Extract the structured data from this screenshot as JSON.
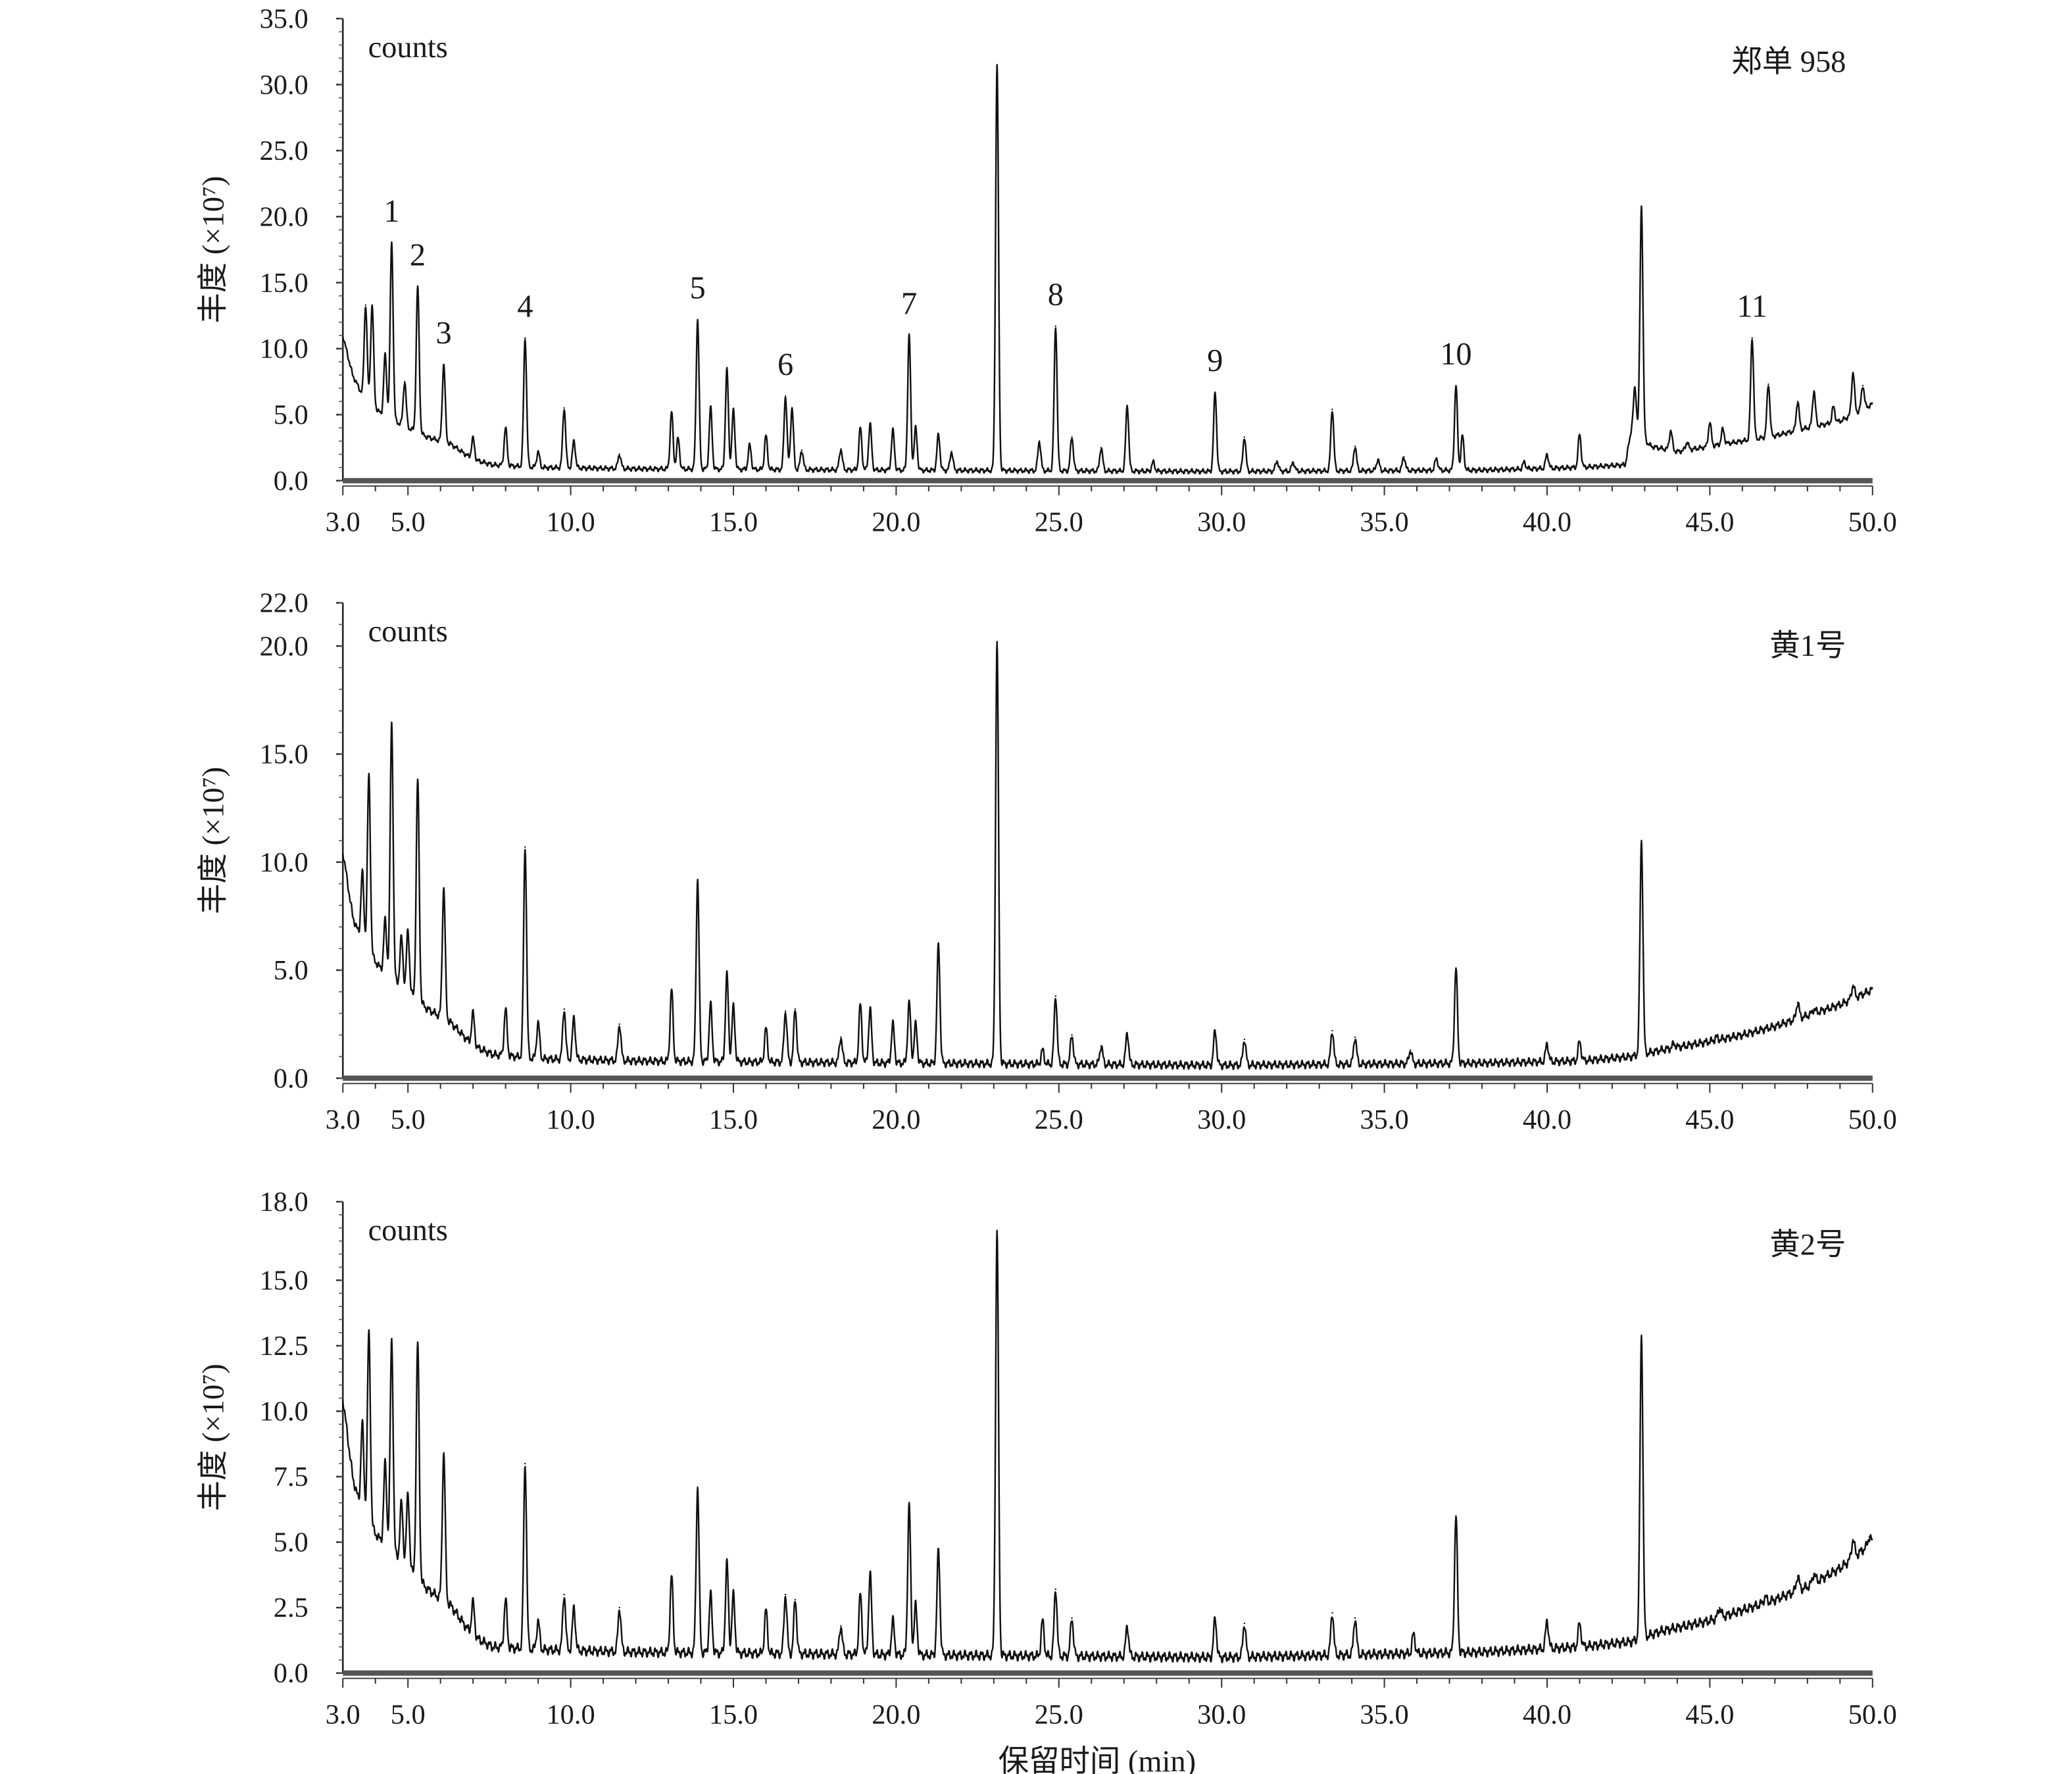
{
  "chart_data": {
    "type": "line",
    "xlabel": "保留时间 (min)",
    "xlim": [
      3.0,
      50.0
    ],
    "x_ticks": [
      "3.0",
      "5.0",
      "10.0",
      "15.0",
      "20.0",
      "25.0",
      "30.0",
      "35.0",
      "40.0",
      "45.0",
      "50.0"
    ],
    "x_tick_values": [
      3,
      5,
      10,
      15,
      20,
      25,
      30,
      35,
      40,
      45,
      50
    ],
    "panels": [
      {
        "name": "郑单 958",
        "unit_label": "counts",
        "ylabel": "丰度 (×10⁷)",
        "ylim": [
          0,
          35
        ],
        "y_ticks": [
          "0.0",
          "5.0",
          "10.0",
          "15.0",
          "20.0",
          "25.0",
          "30.0",
          "35.0"
        ],
        "y_tick_values": [
          0,
          5,
          10,
          15,
          20,
          25,
          30,
          35
        ],
        "baseline": [
          [
            3.0,
            11
          ],
          [
            3.3,
            8
          ],
          [
            3.6,
            6.5
          ],
          [
            4.2,
            5
          ],
          [
            5.0,
            4
          ],
          [
            5.6,
            3.3
          ],
          [
            6.3,
            2.8
          ],
          [
            7.0,
            1.6
          ],
          [
            7.6,
            1.2
          ],
          [
            9,
            1.0
          ],
          [
            12,
            0.9
          ],
          [
            20,
            0.8
          ],
          [
            30,
            0.7
          ],
          [
            38,
            0.8
          ],
          [
            41,
            1.0
          ],
          [
            42.4,
            1.2
          ],
          [
            42.6,
            4.0
          ],
          [
            43.2,
            2.6
          ],
          [
            44,
            2.2
          ],
          [
            45,
            2.6
          ],
          [
            46,
            3.0
          ],
          [
            47,
            3.4
          ],
          [
            48,
            4.0
          ],
          [
            49,
            4.5
          ],
          [
            50,
            5.8
          ]
        ],
        "peaks": [
          [
            3.7,
            13.3
          ],
          [
            3.9,
            13.3
          ],
          [
            4.3,
            9.5
          ],
          [
            4.5,
            18
          ],
          [
            4.9,
            7.5
          ],
          [
            5.3,
            14.7
          ],
          [
            6.1,
            8.8
          ],
          [
            7.0,
            3.2
          ],
          [
            8.0,
            4
          ],
          [
            8.6,
            10.8
          ],
          [
            9.0,
            2.2
          ],
          [
            9.8,
            5.5
          ],
          [
            10.1,
            3
          ],
          [
            11.5,
            2
          ],
          [
            13.1,
            5.2
          ],
          [
            13.3,
            3.2
          ],
          [
            13.9,
            12.2
          ],
          [
            14.3,
            5.5
          ],
          [
            14.8,
            8.4
          ],
          [
            15.0,
            5.3
          ],
          [
            15.5,
            2.7
          ],
          [
            16.0,
            3.4
          ],
          [
            16.6,
            6.4
          ],
          [
            16.8,
            5.5
          ],
          [
            17.1,
            2.3
          ],
          [
            18.3,
            2.4
          ],
          [
            18.9,
            4
          ],
          [
            19.2,
            4.3
          ],
          [
            19.9,
            3.8
          ],
          [
            20.4,
            11
          ],
          [
            20.6,
            4
          ],
          [
            21.3,
            3.5
          ],
          [
            21.7,
            2.2
          ],
          [
            23.1,
            31.5
          ],
          [
            24.4,
            3
          ],
          [
            24.9,
            11.7
          ],
          [
            25.4,
            3.3
          ],
          [
            26.3,
            2.5
          ],
          [
            27.1,
            5.7
          ],
          [
            27.9,
            1.4
          ],
          [
            29.8,
            6.7
          ],
          [
            30.7,
            3.3
          ],
          [
            31.7,
            1.5
          ],
          [
            32.2,
            1.4
          ],
          [
            33.4,
            5.4
          ],
          [
            34.1,
            2.6
          ],
          [
            34.8,
            1.6
          ],
          [
            35.6,
            1.8
          ],
          [
            36.6,
            1.7
          ],
          [
            37.2,
            7.2
          ],
          [
            37.4,
            3.4
          ],
          [
            39.3,
            1.4
          ],
          [
            40.0,
            2
          ],
          [
            41.0,
            3.5
          ],
          [
            42.7,
            7
          ],
          [
            42.9,
            20.8
          ],
          [
            43.8,
            3.8
          ],
          [
            44.3,
            2.9
          ],
          [
            45.0,
            4.4
          ],
          [
            45.4,
            3.9
          ],
          [
            46.3,
            10.8
          ],
          [
            46.8,
            7.3
          ],
          [
            47.7,
            6
          ],
          [
            48.2,
            6.8
          ],
          [
            48.8,
            5.6
          ],
          [
            49.4,
            8.2
          ],
          [
            49.7,
            7.2
          ]
        ],
        "annotations": [
          {
            "label": "1",
            "rt": 4.5,
            "value": 18
          },
          {
            "label": "2",
            "rt": 5.3,
            "value": 14.7
          },
          {
            "label": "3",
            "rt": 6.1,
            "value": 8.8
          },
          {
            "label": "4",
            "rt": 8.6,
            "value": 10.8
          },
          {
            "label": "5",
            "rt": 13.9,
            "value": 12.2
          },
          {
            "label": "6",
            "rt": 16.6,
            "value": 6.4
          },
          {
            "label": "7",
            "rt": 20.4,
            "value": 11
          },
          {
            "label": "8",
            "rt": 24.9,
            "value": 11.7
          },
          {
            "label": "9",
            "rt": 29.8,
            "value": 6.7
          },
          {
            "label": "10",
            "rt": 37.2,
            "value": 7.2
          },
          {
            "label": "11",
            "rt": 46.3,
            "value": 10.8
          }
        ]
      },
      {
        "name": "黄1号",
        "unit_label": "counts",
        "ylabel": "丰度 (×10⁷)",
        "ylim": [
          0,
          22
        ],
        "y_ticks": [
          "0.0",
          "5.0",
          "10.0",
          "15.0",
          "20.0",
          "22.0"
        ],
        "y_tick_values": [
          0,
          5,
          10,
          15,
          20,
          22
        ],
        "baseline": [
          [
            3.0,
            10.5
          ],
          [
            3.3,
            7.5
          ],
          [
            3.6,
            6.2
          ],
          [
            4.2,
            5
          ],
          [
            5.0,
            4
          ],
          [
            5.6,
            3.2
          ],
          [
            6.3,
            2.6
          ],
          [
            7.0,
            1.5
          ],
          [
            7.6,
            1.1
          ],
          [
            9,
            0.9
          ],
          [
            12,
            0.8
          ],
          [
            20,
            0.7
          ],
          [
            30,
            0.6
          ],
          [
            38,
            0.7
          ],
          [
            41,
            0.8
          ],
          [
            42.6,
            1.0
          ],
          [
            43.5,
            1.3
          ],
          [
            45,
            1.7
          ],
          [
            46,
            2.0
          ],
          [
            47,
            2.4
          ],
          [
            48,
            2.9
          ],
          [
            49,
            3.4
          ],
          [
            50,
            4.1
          ]
        ],
        "peaks": [
          [
            3.6,
            9.5
          ],
          [
            3.8,
            14
          ],
          [
            4.3,
            7.3
          ],
          [
            4.5,
            16.4
          ],
          [
            4.8,
            6.5
          ],
          [
            5.0,
            6.8
          ],
          [
            5.3,
            13.8
          ],
          [
            6.1,
            8.8
          ],
          [
            7.0,
            3
          ],
          [
            8.0,
            3.2
          ],
          [
            8.6,
            10.7
          ],
          [
            9.0,
            2.6
          ],
          [
            9.8,
            3.2
          ],
          [
            10.1,
            2.8
          ],
          [
            11.5,
            2.5
          ],
          [
            13.1,
            4.1
          ],
          [
            13.9,
            9.2
          ],
          [
            14.3,
            3.4
          ],
          [
            14.8,
            4.8
          ],
          [
            15.0,
            3.3
          ],
          [
            16.0,
            2.3
          ],
          [
            16.6,
            3.1
          ],
          [
            16.9,
            3.2
          ],
          [
            18.3,
            1.9
          ],
          [
            18.9,
            3.4
          ],
          [
            19.2,
            3.2
          ],
          [
            19.9,
            2.5
          ],
          [
            20.4,
            3.5
          ],
          [
            20.6,
            2.5
          ],
          [
            21.3,
            6.2
          ],
          [
            23.1,
            20.2
          ],
          [
            24.5,
            1.3
          ],
          [
            24.9,
            3.8
          ],
          [
            25.4,
            2
          ],
          [
            26.3,
            1.5
          ],
          [
            27.1,
            2.1
          ],
          [
            29.8,
            2.2
          ],
          [
            30.7,
            1.8
          ],
          [
            33.4,
            2.2
          ],
          [
            34.1,
            1.9
          ],
          [
            35.8,
            1.3
          ],
          [
            37.2,
            5.1
          ],
          [
            40.0,
            1.6
          ],
          [
            41.0,
            1.7
          ],
          [
            42.9,
            11
          ],
          [
            43.9,
            1.6
          ],
          [
            45.2,
            1.9
          ],
          [
            47.7,
            3.5
          ],
          [
            48.2,
            3.2
          ],
          [
            49.4,
            4.3
          ]
        ],
        "annotations": []
      },
      {
        "name": "黄2号",
        "unit_label": "counts",
        "ylabel": "丰度 (×10⁷)",
        "ylim": [
          0,
          18
        ],
        "y_ticks": [
          "0.0",
          "2.5",
          "5.0",
          "7.5",
          "10.0",
          "12.5",
          "15.0",
          "18.0"
        ],
        "y_tick_values": [
          0,
          2.5,
          5,
          7.5,
          10,
          12.5,
          15,
          18
        ],
        "baseline": [
          [
            3.0,
            10.5
          ],
          [
            3.3,
            7.5
          ],
          [
            3.6,
            6
          ],
          [
            4.2,
            5
          ],
          [
            5.0,
            4
          ],
          [
            5.6,
            3.2
          ],
          [
            6.3,
            2.6
          ],
          [
            7.0,
            1.4
          ],
          [
            7.6,
            1.0
          ],
          [
            9,
            0.9
          ],
          [
            12,
            0.8
          ],
          [
            20,
            0.7
          ],
          [
            30,
            0.6
          ],
          [
            38,
            0.8
          ],
          [
            41,
            1.0
          ],
          [
            42.6,
            1.2
          ],
          [
            43.5,
            1.6
          ],
          [
            45,
            2.0
          ],
          [
            46,
            2.4
          ],
          [
            47,
            2.8
          ],
          [
            48,
            3.3
          ],
          [
            49,
            4.0
          ],
          [
            50,
            5.0
          ]
        ],
        "peaks": [
          [
            3.6,
            9.5
          ],
          [
            3.8,
            13
          ],
          [
            4.3,
            8
          ],
          [
            4.5,
            12.7
          ],
          [
            4.8,
            6.5
          ],
          [
            5.0,
            6.8
          ],
          [
            5.3,
            12.6
          ],
          [
            6.1,
            8.4
          ],
          [
            7.0,
            2.7
          ],
          [
            8.0,
            2.8
          ],
          [
            8.6,
            8
          ],
          [
            9.0,
            2
          ],
          [
            9.8,
            3
          ],
          [
            10.1,
            2.5
          ],
          [
            11.5,
            2.5
          ],
          [
            13.1,
            3.7
          ],
          [
            13.9,
            7.1
          ],
          [
            14.3,
            3
          ],
          [
            14.8,
            4.2
          ],
          [
            15.0,
            3
          ],
          [
            16.0,
            2.4
          ],
          [
            16.6,
            3
          ],
          [
            16.9,
            2.8
          ],
          [
            18.3,
            1.8
          ],
          [
            18.9,
            3
          ],
          [
            19.2,
            3.8
          ],
          [
            19.9,
            2
          ],
          [
            20.4,
            6.4
          ],
          [
            20.6,
            2.6
          ],
          [
            21.3,
            4.7
          ],
          [
            23.1,
            16.9
          ],
          [
            24.5,
            2
          ],
          [
            24.9,
            3.2
          ],
          [
            25.4,
            2.1
          ],
          [
            27.1,
            1.8
          ],
          [
            29.8,
            2.1
          ],
          [
            30.7,
            1.9
          ],
          [
            33.4,
            2.3
          ],
          [
            34.1,
            2.1
          ],
          [
            35.9,
            1.5
          ],
          [
            37.2,
            6
          ],
          [
            40.0,
            2
          ],
          [
            41.0,
            1.9
          ],
          [
            42.9,
            12.9
          ],
          [
            45.3,
            2.5
          ],
          [
            46.7,
            2.9
          ],
          [
            47.7,
            3.7
          ],
          [
            48.2,
            3.8
          ],
          [
            49.4,
            5.1
          ],
          [
            49.9,
            5.2
          ]
        ],
        "annotations": []
      }
    ]
  }
}
